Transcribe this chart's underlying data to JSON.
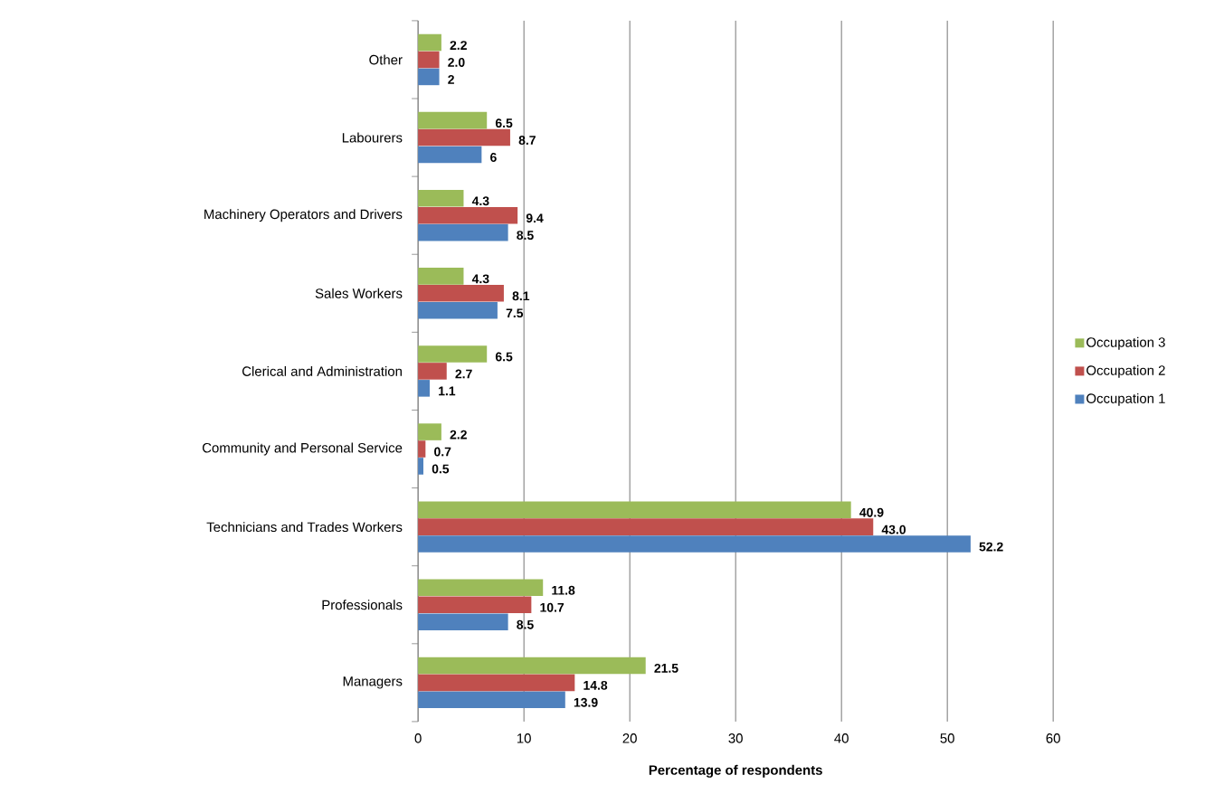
{
  "chart_data": {
    "type": "bar",
    "orientation": "horizontal",
    "xlabel": "Percentage of respondents",
    "categories": [
      "Other",
      "Labourers",
      "Machinery Operators and Drivers",
      "Sales Workers",
      "Clerical and Administration",
      "Community and Personal Service",
      "Technicians and Trades Workers",
      "Professionals",
      "Managers"
    ],
    "series": [
      {
        "name": "Occupation 1",
        "color": "#4f81bd",
        "values": [
          2,
          6,
          8.5,
          7.5,
          1.1,
          0.5,
          52.2,
          8.5,
          13.9
        ],
        "value_labels": [
          "2",
          "6",
          "8.5",
          "7.5",
          "1.1",
          "0.5",
          "52.2",
          "8.5",
          "13.9"
        ]
      },
      {
        "name": "Occupation 2",
        "color": "#c0504d",
        "values": [
          2.0,
          8.7,
          9.4,
          8.1,
          2.7,
          0.7,
          43.0,
          10.7,
          14.8
        ],
        "value_labels": [
          "2.0",
          "8.7",
          "9.4",
          "8.1",
          "2.7",
          "0.7",
          "43.0",
          "10.7",
          "14.8"
        ]
      },
      {
        "name": "Occupation 3",
        "color": "#9bbb59",
        "values": [
          2.2,
          6.5,
          4.3,
          4.3,
          6.5,
          2.2,
          40.9,
          11.8,
          21.5
        ],
        "value_labels": [
          "2.2",
          "6.5",
          "4.3",
          "4.3",
          "6.5",
          "2.2",
          "40.9",
          "11.8",
          "21.5"
        ]
      }
    ],
    "xlim": [
      0,
      60
    ],
    "xticks": [
      0,
      10,
      20,
      30,
      40,
      50,
      60
    ],
    "grid": "x",
    "legend": "right"
  }
}
